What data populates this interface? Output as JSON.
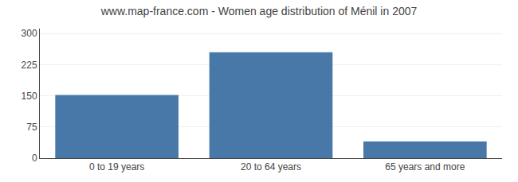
{
  "chart_data": {
    "type": "bar",
    "title": "www.map-france.com - Women age distribution of Ménil in 2007",
    "categories": [
      "0 to 19 years",
      "20 to 64 years",
      "65 years and more"
    ],
    "values": [
      152,
      255,
      40
    ],
    "color": "#4878a8",
    "ylim": [
      0,
      312
    ],
    "yticks": [
      0,
      75,
      150,
      225,
      300
    ],
    "grid": true
  }
}
